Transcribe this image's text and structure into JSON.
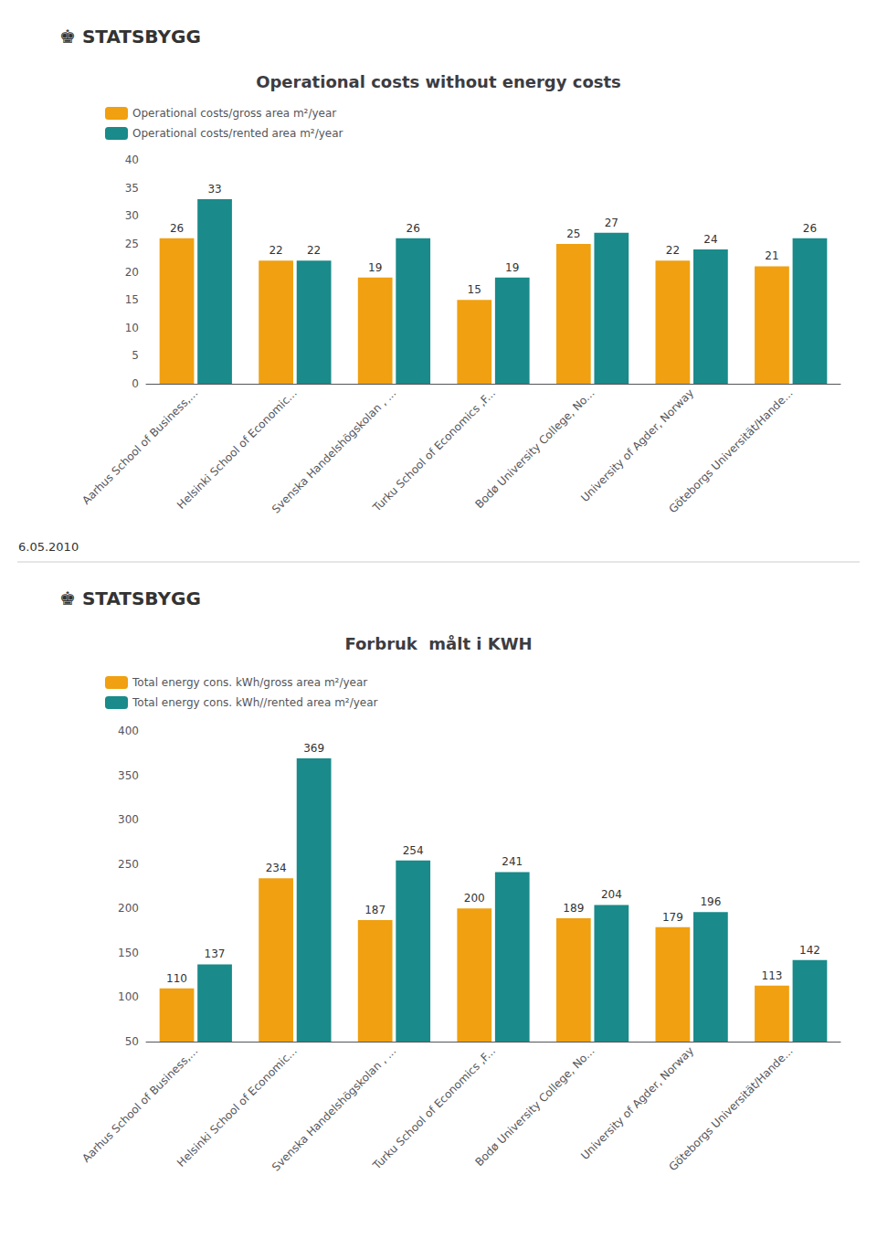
{
  "chart_data": [
    {
      "type": "bar",
      "title": "Operational costs without energy costs",
      "annotations": [
        "♚ STATSBYGG",
        "6.05.2010"
      ],
      "categories": [
        "Aarhus School of Business,...",
        "Helsinki School of Economic...",
        "Svenska Handelshögskolan , ...",
        "Turku School of Economics ,F...",
        "Bodø University College, No...",
        "University of Agder, Norway",
        "Göteborgs Universität/Hande..."
      ],
      "series": [
        {
          "name": "Operational costs/gross area m²/year",
          "color": "#f0a010",
          "values": [
            26,
            22,
            19,
            15,
            25,
            22,
            21
          ]
        },
        {
          "name": "Operational costs/rented area m²/year",
          "color": "#1a8a8a",
          "values": [
            33,
            22,
            26,
            19,
            27,
            24,
            26
          ]
        }
      ],
      "ylim": [
        0,
        40
      ],
      "yticks": [
        0,
        5,
        10,
        15,
        20,
        25,
        30,
        35,
        40
      ],
      "grid": false,
      "legend": "upper left",
      "data_labels": true
    },
    {
      "type": "bar",
      "title": "Forbruk  målt i KWH",
      "annotations": [
        "♚ STATSBYGG"
      ],
      "categories": [
        "Aarhus School of Business,...",
        "Helsinki School of Economic...",
        "Svenska Handelshögskolan , ...",
        "Turku School of Economics ,F...",
        "Bodø University College, No...",
        "University of Agder, Norway",
        "Göteborgs Universität/Hande..."
      ],
      "series": [
        {
          "name": "Total energy cons. kWh/gross area m²/year",
          "color": "#f0a010",
          "values": [
            110,
            234,
            187,
            200,
            189,
            179,
            113
          ]
        },
        {
          "name": "Total energy cons. kWh//rented area m²/year",
          "color": "#1a8a8a",
          "values": [
            137,
            369,
            254,
            241,
            204,
            196,
            142
          ]
        }
      ],
      "ylim": [
        50,
        400
      ],
      "yticks": [
        50,
        100,
        150,
        200,
        250,
        300,
        350,
        400
      ],
      "grid": false,
      "legend": "upper left",
      "data_labels": true
    }
  ]
}
